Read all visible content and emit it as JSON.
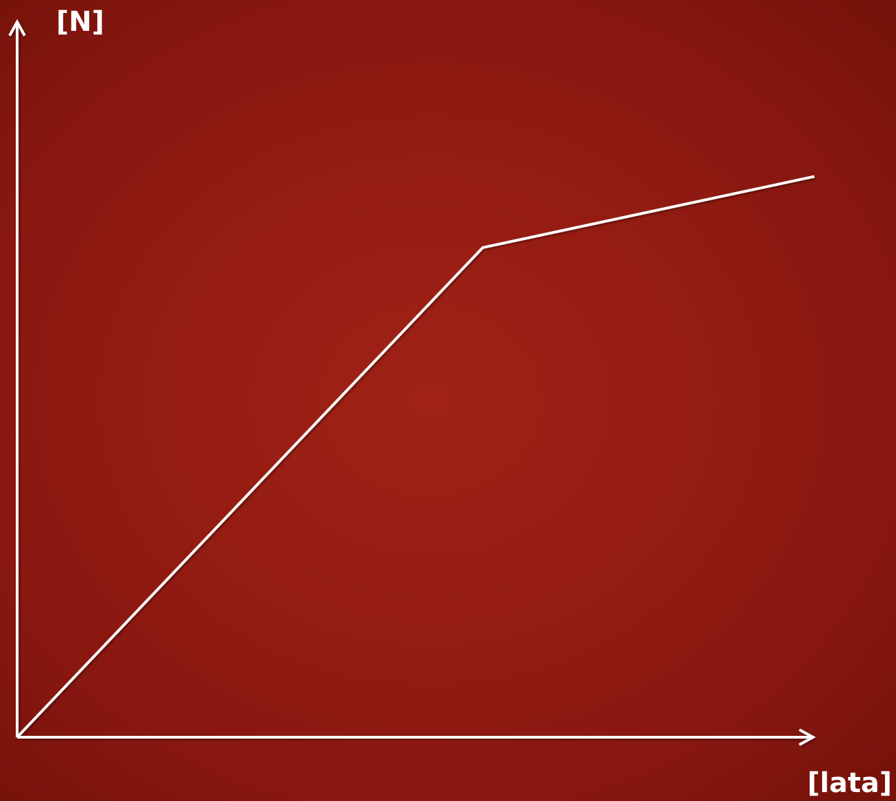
{
  "chart_data": {
    "type": "line",
    "title": "",
    "xlabel": "[lata]",
    "ylabel": "[N]",
    "grid": false,
    "xlim": [
      0,
      100
    ],
    "ylim": [
      0,
      100
    ],
    "series": [
      {
        "x": [
          0,
          58.4,
          100
        ],
        "y": [
          0,
          70.2,
          80.4
        ]
      }
    ],
    "colors": {
      "axis": "#ffffff",
      "line": "#ffffff",
      "background": "#961c12"
    }
  }
}
